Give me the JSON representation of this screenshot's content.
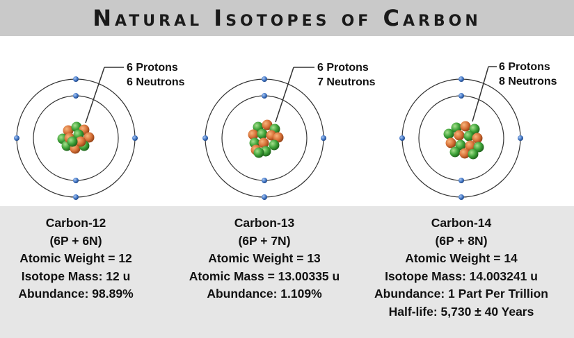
{
  "title": "Natural Isotopes of Carbon",
  "colors": {
    "title_bar": "#c9c9c9",
    "info_panel": "#e6e6e6",
    "proton": "#d9733a",
    "neutron": "#3fa43a",
    "electron": "#3f74c4",
    "orbit": "#333333"
  },
  "isotopes": [
    {
      "label_protons": "6 Protons",
      "label_neutrons": "6 Neutrons",
      "name": "Carbon-12",
      "composition": "(6P + 6N)",
      "atomic_weight": "Atomic Weight = 12",
      "mass": "Isotope Mass: 12 u",
      "abundance": "Abundance: 98.89%",
      "protons": 6,
      "neutrons": 6
    },
    {
      "label_protons": "6 Protons",
      "label_neutrons": "7 Neutrons",
      "name": "Carbon-13",
      "composition": "(6P + 7N)",
      "atomic_weight": "Atomic Weight = 13",
      "mass": "Atomic Mass = 13.00335 u",
      "abundance": "Abundance: 1.109%",
      "protons": 6,
      "neutrons": 7
    },
    {
      "label_protons": "6 Protons",
      "label_neutrons": "8 Neutrons",
      "name": "Carbon-14",
      "composition": "(6P + 8N)",
      "atomic_weight": "Atomic Weight = 14",
      "mass": "Isotope Mass: 14.003241 u",
      "abundance": "Abundance: 1 Part Per Trillion",
      "half_life": "Half-life: 5,730 ± 40 Years",
      "protons": 6,
      "neutrons": 8
    }
  ]
}
